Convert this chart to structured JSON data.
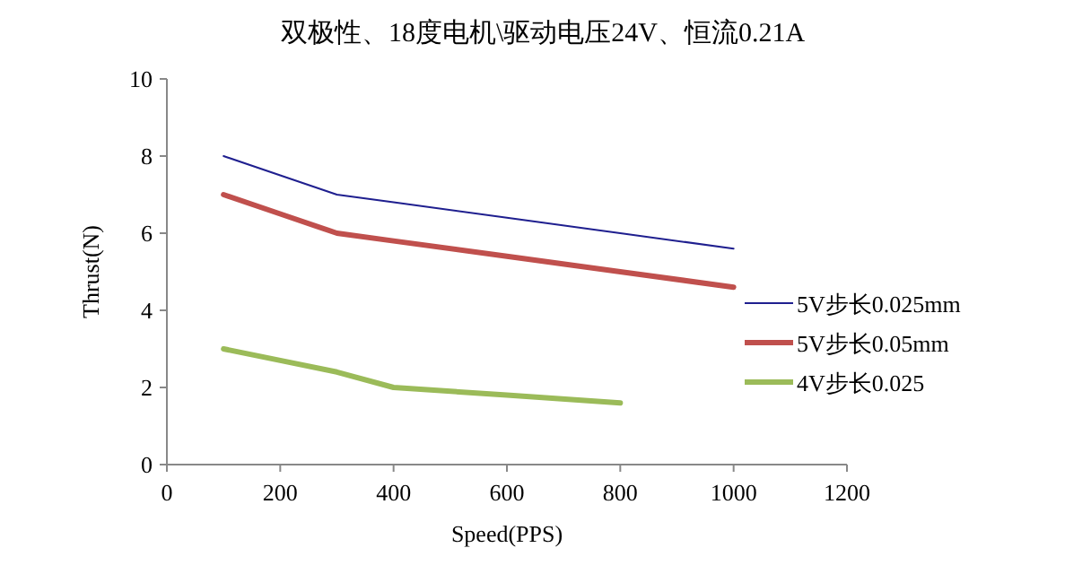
{
  "chart_data": {
    "type": "line",
    "title": "双极性、18度电机\\驱动电压24V、恒流0.21A",
    "xlabel": "Speed(PPS)",
    "ylabel": "Thrust(N)",
    "xlim": [
      0,
      1200
    ],
    "xticks": [
      0,
      200,
      400,
      600,
      800,
      1000,
      1200
    ],
    "ylim": [
      0,
      10
    ],
    "yticks": [
      0,
      2,
      4,
      6,
      8,
      10
    ],
    "grid": false,
    "legend": "right",
    "marker": "none",
    "series": [
      {
        "name": "5V步长0.025mm",
        "color": "#1f1f8f",
        "x": [
          100,
          200,
          300,
          400,
          600,
          800,
          1000
        ],
        "values": [
          8,
          7.5,
          7,
          6.8,
          6.4,
          6,
          5.6
        ]
      },
      {
        "name": "5V步长0.05mm",
        "color": "#c0504d",
        "x": [
          100,
          200,
          300,
          400,
          600,
          800,
          1000
        ],
        "values": [
          7,
          6.5,
          6,
          5.8,
          5.4,
          5,
          4.6
        ]
      },
      {
        "name": "4V步长0.025",
        "color": "#9bbb59",
        "x": [
          100,
          200,
          300,
          400,
          600,
          800
        ],
        "values": [
          3,
          2.7,
          2.4,
          2,
          1.8,
          1.6
        ]
      }
    ]
  }
}
